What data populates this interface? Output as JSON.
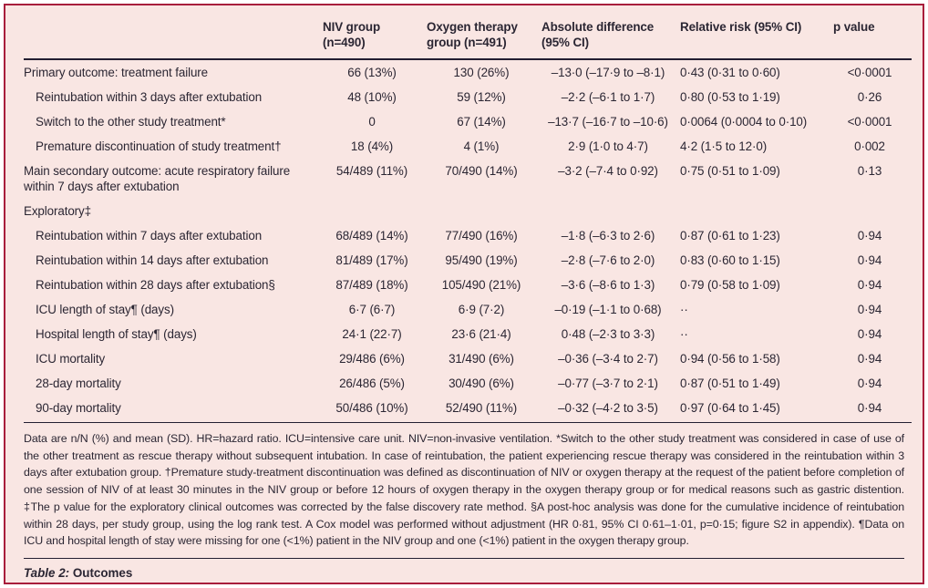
{
  "table": {
    "caption_label": "Table 2:",
    "caption_title": "Outcomes",
    "columns": [
      {
        "id": "outcome",
        "label": ""
      },
      {
        "id": "niv-group",
        "label": "NIV group (n=490)"
      },
      {
        "id": "oxygen-group",
        "label": "Oxygen therapy group (n=491)"
      },
      {
        "id": "absolute-difference",
        "label": "Absolute difference (95% CI)"
      },
      {
        "id": "relative-risk",
        "label": "Relative risk (95% CI)"
      },
      {
        "id": "p-value",
        "label": "p value"
      }
    ],
    "rows": [
      {
        "label": "Primary outcome: treatment failure",
        "indent": 0,
        "niv": "66 (13%)",
        "oxygen": "130 (26%)",
        "diff": "–13·0 (–17·9 to –8·1)",
        "rr": "0·43 (0·31 to 0·60)",
        "p": "<0·0001"
      },
      {
        "label": "Reintubation within 3 days after extubation",
        "indent": 1,
        "niv": "48 (10%)",
        "oxygen": "59 (12%)",
        "diff": "–2·2 (–6·1 to 1·7)",
        "rr": "0·80 (0·53 to 1·19)",
        "p": "0·26"
      },
      {
        "label": "Switch to the other study treatment*",
        "indent": 1,
        "niv": "0",
        "oxygen": "67 (14%)",
        "diff": "–13·7 (–16·7 to –10·6)",
        "rr": "0·0064 (0·0004 to 0·10)",
        "p": "<0·0001"
      },
      {
        "label": "Premature discontinuation of study treatment†",
        "indent": 1,
        "niv": "18 (4%)",
        "oxygen": "4 (1%)",
        "diff": "2·9 (1·0 to 4·7)",
        "rr": "4·2 (1·5 to 12·0)",
        "p": "0·002"
      },
      {
        "label": "Main secondary outcome: acute respiratory failure within 7 days after extubation",
        "indent": 0,
        "niv": "54/489 (11%)",
        "oxygen": "70/490 (14%)",
        "diff": "–3·2 (–7·4 to 0·92)",
        "rr": "0·75 (0·51 to 1·09)",
        "p": "0·13"
      },
      {
        "label": "Exploratory‡",
        "indent": 0,
        "niv": "",
        "oxygen": "",
        "diff": "",
        "rr": "",
        "p": ""
      },
      {
        "label": "Reintubation within 7 days after extubation",
        "indent": 1,
        "niv": "68/489 (14%)",
        "oxygen": "77/490 (16%)",
        "diff": "–1·8 (–6·3 to 2·6)",
        "rr": "0·87 (0·61 to 1·23)",
        "p": "0·94"
      },
      {
        "label": "Reintubation within 14 days after extubation",
        "indent": 1,
        "niv": "81/489 (17%)",
        "oxygen": "95/490 (19%)",
        "diff": "–2·8 (–7·6 to 2·0)",
        "rr": "0·83 (0·60 to 1·15)",
        "p": "0·94"
      },
      {
        "label": "Reintubation within 28 days after extubation§",
        "indent": 1,
        "niv": "87/489 (18%)",
        "oxygen": "105/490 (21%)",
        "diff": "–3·6 (–8·6 to 1·3)",
        "rr": "0·79 (0·58 to 1·09)",
        "p": "0·94"
      },
      {
        "label": "ICU length of stay¶ (days)",
        "indent": 1,
        "niv": "6·7 (6·7)",
        "oxygen": "6·9 (7·2)",
        "diff": "–0·19 (–1·1 to 0·68)",
        "rr": "··",
        "p": "0·94"
      },
      {
        "label": "Hospital length of stay¶ (days)",
        "indent": 1,
        "niv": "24·1 (22·7)",
        "oxygen": "23·6 (21·4)",
        "diff": "0·48 (–2·3 to 3·3)",
        "rr": "··",
        "p": "0·94"
      },
      {
        "label": "ICU mortality",
        "indent": 1,
        "niv": "29/486 (6%)",
        "oxygen": "31/490 (6%)",
        "diff": "–0·36 (–3·4 to 2·7)",
        "rr": "0·94 (0·56 to 1·58)",
        "p": "0·94"
      },
      {
        "label": "28-day mortality",
        "indent": 1,
        "niv": "26/486 (5%)",
        "oxygen": "30/490 (6%)",
        "diff": "–0·77 (–3·7 to 2·1)",
        "rr": "0·87 (0·51 to 1·49)",
        "p": "0·94"
      },
      {
        "label": "90-day mortality",
        "indent": 1,
        "niv": "50/486 (10%)",
        "oxygen": "52/490 (11%)",
        "diff": "–0·32 (–4·2 to 3·5)",
        "rr": "0·97 (0·64 to 1·45)",
        "p": "0·94"
      }
    ],
    "footnote": "Data are n/N (%) and mean (SD). HR=hazard ratio. ICU=intensive care unit. NIV=non-invasive ventilation. *Switch to the other study treatment was considered in case of use of the other treatment as rescue therapy without subsequent intubation. In case of reintubation, the patient experiencing rescue therapy was considered in the reintubation within 3 days after extubation group. †Premature study-treatment discontinuation was defined as discontinuation of NIV or oxygen therapy at the request of the patient before completion of one session of NIV of at least 30 minutes in the NIV group or before 12 hours of oxygen therapy in the oxygen therapy group or for medical reasons such as gastric distention. ‡The p value for the exploratory clinical outcomes was corrected by the false discovery rate method. §A post-hoc analysis was done for the cumulative incidence of reintubation within 28 days, per study group, using the log rank test. A Cox model was performed without adjustment (HR 0·81, 95% CI 0·61–1·01, p=0·15; figure S2 in appendix). ¶Data on ICU and hospital length of stay were missing for one (<1%) patient in the NIV group and one (<1%) patient in the oxygen therapy group."
  },
  "colors": {
    "border": "#a81e3c",
    "background": "#f9e6e3",
    "text": "#2b2633",
    "rule": "#231e31"
  }
}
